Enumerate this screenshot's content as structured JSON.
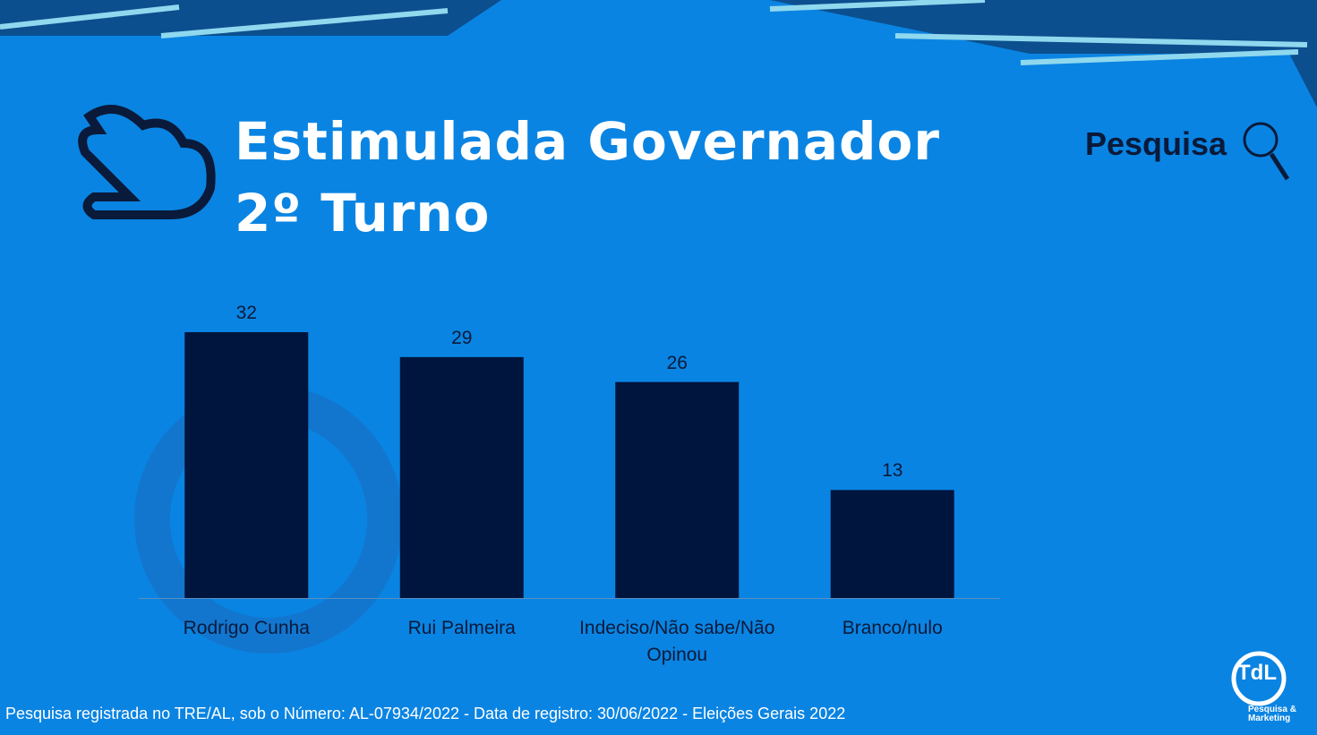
{
  "chart_data": {
    "type": "bar",
    "title": "Estimulada Governador 2º Turno",
    "categories": [
      "Rodrigo Cunha",
      "Rui Palmeira",
      "Indeciso/Não sabe/Não Opinou",
      "Branco/nulo"
    ],
    "values": [
      32,
      29,
      26,
      13
    ],
    "color": "#00153d",
    "note": "Pesquisa registrada no TRE/AL, sob o Número: AL-07934/2022 - Data de registro: 30/06/2022 - Eleições Gerais 2022",
    "brand": "Pesquisa",
    "logo": "TdL",
    "logo_caption": "Pesquisa & Marketing"
  }
}
